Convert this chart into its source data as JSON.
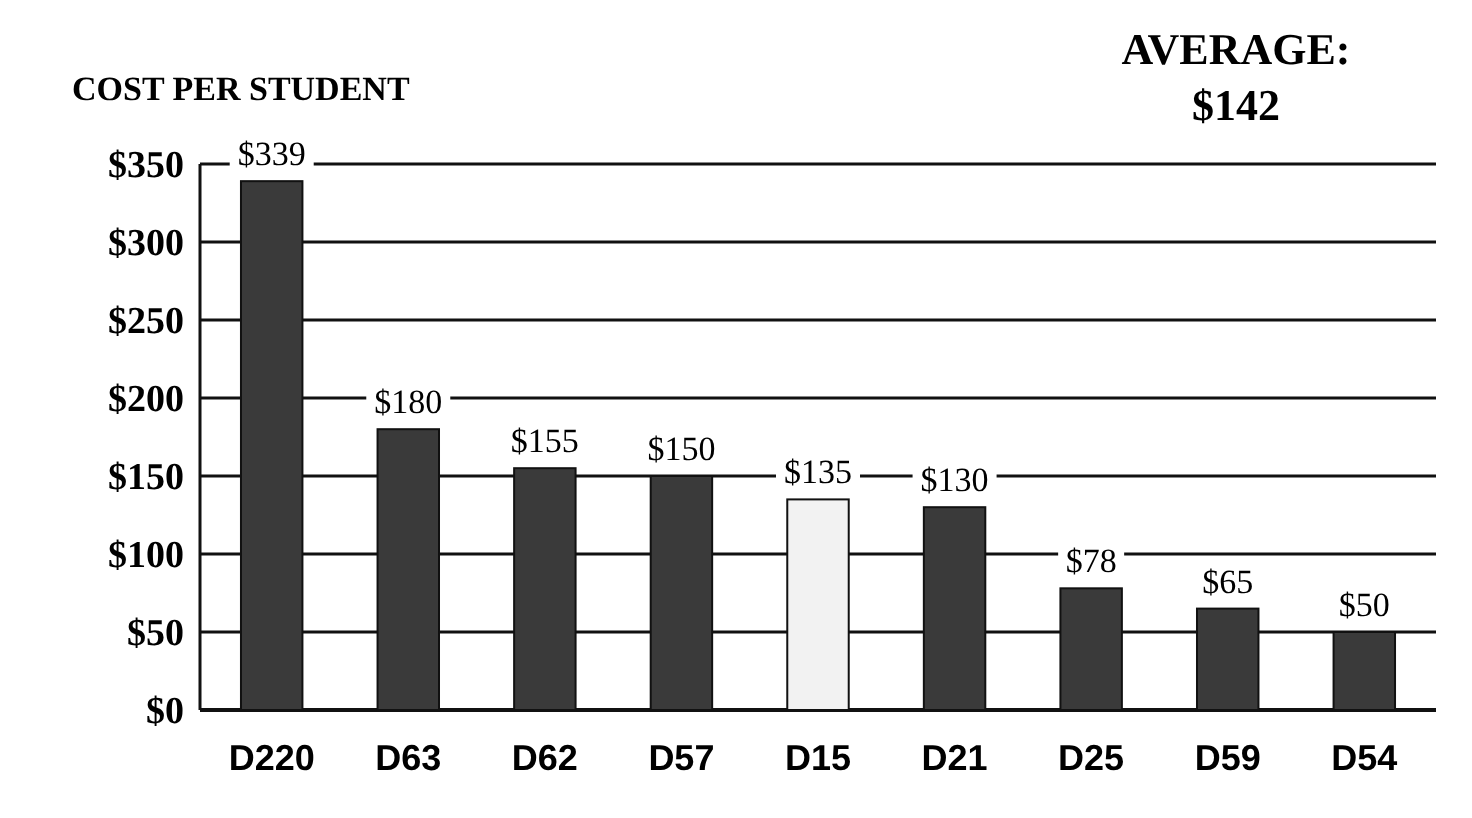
{
  "chart_data": {
    "type": "bar",
    "title": "COST PER STUDENT",
    "annotations": [
      "AVERAGE: $142"
    ],
    "categories": [
      "D220",
      "D63",
      "D62",
      "D57",
      "D15",
      "D21",
      "D25",
      "D59",
      "D54"
    ],
    "values": [
      339,
      180,
      155,
      150,
      135,
      130,
      78,
      65,
      50
    ],
    "colors": [
      "#3a3a3a",
      "#3a3a3a",
      "#3a3a3a",
      "#3a3a3a",
      "#f2f2f2",
      "#3a3a3a",
      "#3a3a3a",
      "#3a3a3a",
      "#3a3a3a"
    ],
    "value_labels": [
      "$339",
      "$180",
      "$155",
      "$150",
      "$135",
      "$130",
      "$78",
      "$65",
      "$50"
    ],
    "ylim": [
      0,
      350
    ],
    "yticks": [
      {
        "value": 0,
        "label": "$0"
      },
      {
        "value": 50,
        "label": "$50"
      },
      {
        "value": 100,
        "label": "$100"
      },
      {
        "value": 150,
        "label": "$150"
      },
      {
        "value": 200,
        "label": "$200"
      },
      {
        "value": 250,
        "label": "$250"
      },
      {
        "value": 300,
        "label": "$300"
      },
      {
        "value": 350,
        "label": "$350"
      }
    ],
    "grid": "y"
  }
}
